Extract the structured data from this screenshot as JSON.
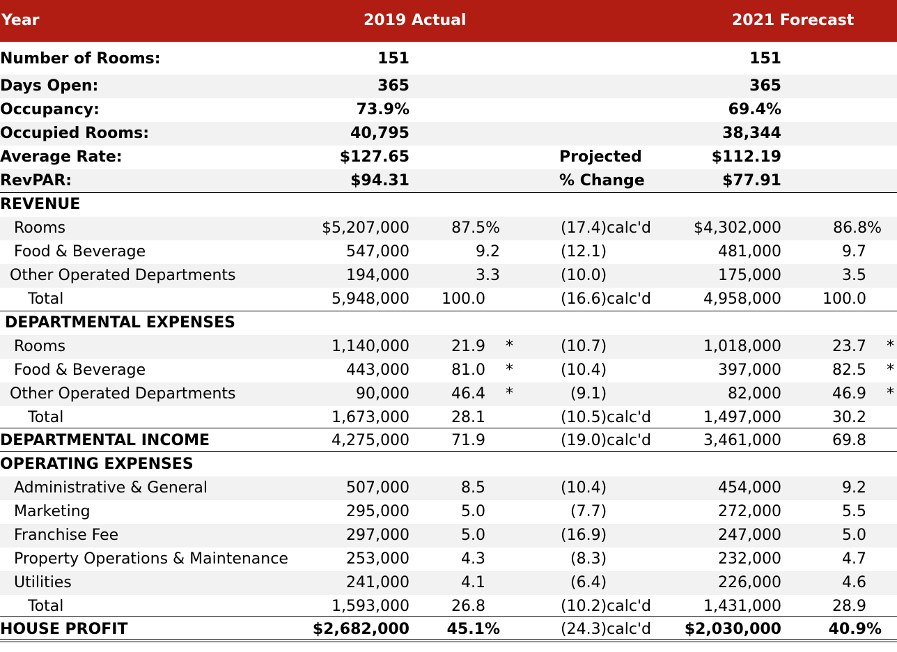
{
  "header": {
    "year": "Year",
    "col_2019": "2019 Actual",
    "col_2021": "2021 Forecast"
  },
  "projected_label": "Projected",
  "change_label": "% Change",
  "stats": [
    {
      "label": "Number of Rooms:",
      "a": "151",
      "f": "151"
    },
    {
      "label": "Days Open:",
      "a": "365",
      "f": "365"
    },
    {
      "label": "Occupancy:",
      "a": "73.9%",
      "f": "69.4%"
    },
    {
      "label": "Occupied Rooms:",
      "a": "40,795",
      "f": "38,344"
    },
    {
      "label": "Average Rate:",
      "a": "$127.65",
      "f": "$112.19"
    },
    {
      "label": "RevPAR:",
      "a": "$94.31",
      "f": "$77.91"
    }
  ],
  "revenue": {
    "heading": "REVENUE",
    "rows": [
      {
        "label": "Rooms",
        "a_amt": "$5,207,000",
        "a_pct": "87.5%",
        "chg": "(17.4)calc'd",
        "f_amt": "$4,302,000",
        "f_pct": "86.8%"
      },
      {
        "label": "Food & Beverage",
        "a_amt": "547,000",
        "a_pct": "9.2",
        "chg": "(12.1)",
        "f_amt": "481,000",
        "f_pct": "9.7"
      },
      {
        "label": "Other Operated Departments",
        "a_amt": "194,000",
        "a_pct": "3.3",
        "chg": "(10.0)",
        "f_amt": "175,000",
        "f_pct": "3.5"
      },
      {
        "label": "Total",
        "a_amt": "5,948,000",
        "a_pct": "100.0",
        "chg": "(16.6)calc'd",
        "f_amt": "4,958,000",
        "f_pct": "100.0"
      }
    ]
  },
  "dept_expenses": {
    "heading": "DEPARTMENTAL EXPENSES",
    "star": "*",
    "rows": [
      {
        "label": "Rooms",
        "a_amt": "1,140,000",
        "a_pct": "21.9",
        "chg": "(10.7)",
        "f_amt": "1,018,000",
        "f_pct": "23.7"
      },
      {
        "label": "Food & Beverage",
        "a_amt": "443,000",
        "a_pct": "81.0",
        "chg": "(10.4)",
        "f_amt": "397,000",
        "f_pct": "82.5"
      },
      {
        "label": "Other Operated Departments",
        "a_amt": "90,000",
        "a_pct": "46.4",
        "chg": "(9.1)",
        "f_amt": "82,000",
        "f_pct": "46.9"
      },
      {
        "label": "Total",
        "a_amt": "1,673,000",
        "a_pct": "28.1",
        "chg": "(10.5)calc'd",
        "f_amt": "1,497,000",
        "f_pct": "30.2"
      }
    ]
  },
  "dept_income": {
    "label": "DEPARTMENTAL INCOME",
    "a_amt": "4,275,000",
    "a_pct": "71.9",
    "chg": "(19.0)calc'd",
    "f_amt": "3,461,000",
    "f_pct": "69.8"
  },
  "operating_expenses": {
    "heading": "OPERATING EXPENSES",
    "rows": [
      {
        "label": "Administrative & General",
        "a_amt": "507,000",
        "a_pct": "8.5",
        "chg": "(10.4)",
        "f_amt": "454,000",
        "f_pct": "9.2"
      },
      {
        "label": "Marketing",
        "a_amt": "295,000",
        "a_pct": "5.0",
        "chg": "(7.7)",
        "f_amt": "272,000",
        "f_pct": "5.5"
      },
      {
        "label": "Franchise Fee",
        "a_amt": "297,000",
        "a_pct": "5.0",
        "chg": "(16.9)",
        "f_amt": "247,000",
        "f_pct": "5.0"
      },
      {
        "label": "Property Operations & Maintenance",
        "a_amt": "253,000",
        "a_pct": "4.3",
        "chg": "(8.3)",
        "f_amt": "232,000",
        "f_pct": "4.7"
      },
      {
        "label": "Utilities",
        "a_amt": "241,000",
        "a_pct": "4.1",
        "chg": "(6.4)",
        "f_amt": "226,000",
        "f_pct": "4.6"
      },
      {
        "label": "Total",
        "a_amt": "1,593,000",
        "a_pct": "26.8",
        "chg": "(10.2)calc'd",
        "f_amt": "1,431,000",
        "f_pct": "28.9"
      }
    ]
  },
  "house_profit": {
    "label": "HOUSE PROFIT",
    "a_amt": "$2,682,000",
    "a_pct": "45.1%",
    "chg": "(24.3)calc'd",
    "f_amt": "$2,030,000",
    "f_pct": "40.9%"
  }
}
